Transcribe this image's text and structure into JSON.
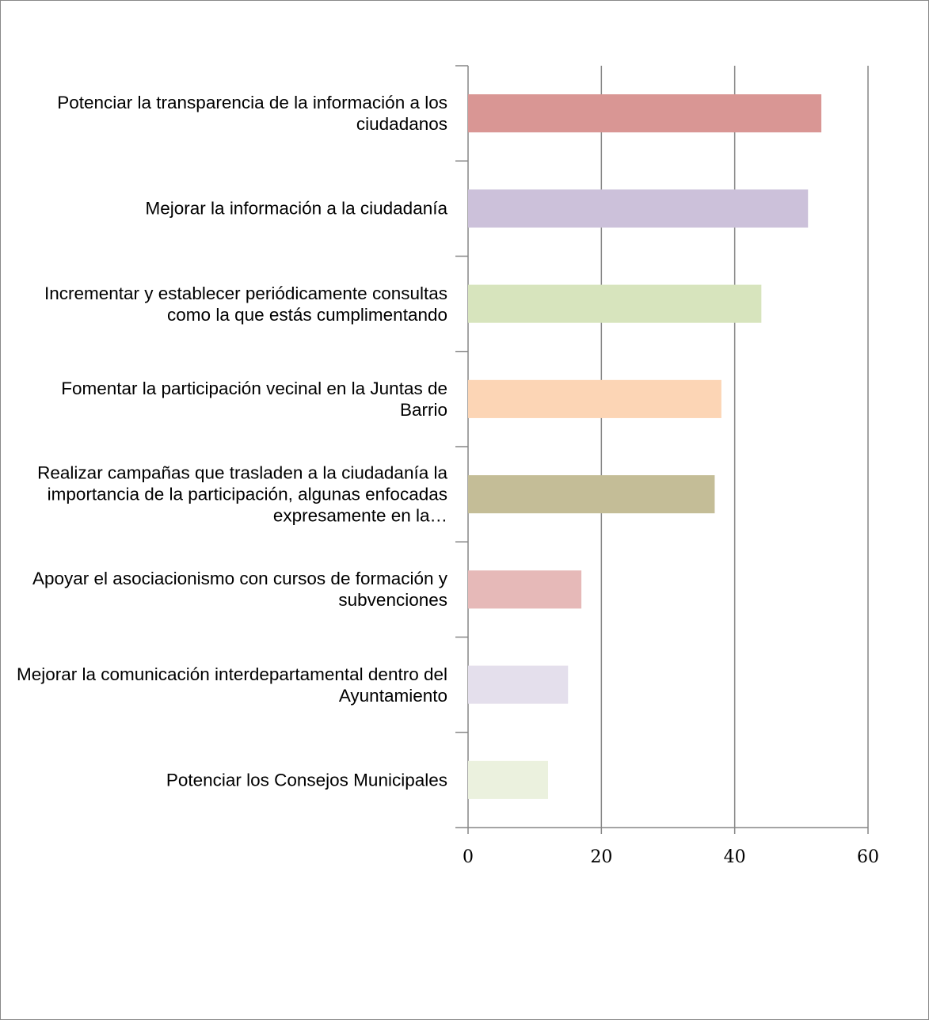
{
  "chart_data": {
    "type": "bar",
    "orientation": "horizontal",
    "categories": [
      "Potenciar la transparencia de la información a los ciudadanos",
      "Mejorar la información a la ciudadanía",
      "Incrementar y establecer periódicamente consultas como la que estás cumplimentando",
      "Fomentar la participación vecinal en la Juntas de Barrio",
      "Realizar campañas que trasladen a la ciudadanía la importancia de la participación, algunas enfocadas expresamente en la…",
      "Apoyar el asociacionismo con cursos de formación y subvenciones",
      "Mejorar la comunicación interdepartamental dentro del Ayuntamiento",
      "Potenciar los Consejos Municipales"
    ],
    "values": [
      53,
      51,
      44,
      38,
      37,
      17,
      15,
      12
    ],
    "colors": [
      "#d99694",
      "#ccc1da",
      "#d7e4bd",
      "#fcd5b5",
      "#c4bd97",
      "#e6b9b8",
      "#e4dfec",
      "#ebf1de"
    ],
    "xlim": [
      0,
      60
    ],
    "xticks": [
      0,
      20,
      40,
      60
    ],
    "grid": true
  }
}
